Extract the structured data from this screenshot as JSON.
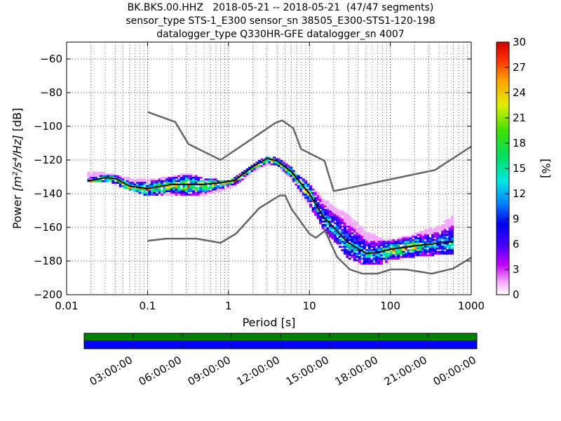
{
  "title_lines": [
    "BK.BKS.00.HHZ   2018-05-21 -- 2018-05-21  (47/47 segments)",
    "sensor_type STS-1_E300 sensor_sn 38505_E300-STS1-120-198",
    "datalogger_type Q330HR-GFE datalogger_sn 4007"
  ],
  "chart_data": {
    "type": "heatmap",
    "xlabel": "Period [s]",
    "ylabel_prefix": "Power ",
    "ylabel_units": "[m²/s⁴/Hz]",
    "ylabel_suffix": " [dB]",
    "x_scale": "log",
    "xlim": [
      0.01,
      1000
    ],
    "ylim": [
      -200,
      -50
    ],
    "x_ticks": [
      0.01,
      0.1,
      1,
      10,
      100,
      1000
    ],
    "x_tick_labels": [
      "0.01",
      "0.1",
      "1",
      "10",
      "100",
      "1000"
    ],
    "y_ticks": [
      -60,
      -80,
      -100,
      -120,
      -140,
      -160,
      -180,
      -200
    ],
    "y_tick_labels": [
      "−60",
      "−80",
      "−100",
      "−120",
      "−140",
      "−160",
      "−180",
      "−200"
    ],
    "grid": "dotted",
    "colorbar": {
      "label": "[%]",
      "range": [
        0,
        30
      ],
      "ticks": [
        0,
        3,
        6,
        9,
        12,
        15,
        18,
        21,
        24,
        27,
        30
      ],
      "colormap": "pqlx"
    },
    "series": [
      {
        "role": "noise-model-high",
        "color": "#666666",
        "points": [
          [
            0.1,
            -91.5
          ],
          [
            0.22,
            -97.4
          ],
          [
            0.32,
            -110.5
          ],
          [
            0.8,
            -120
          ],
          [
            3.8,
            -98
          ],
          [
            4.6,
            -96.5
          ],
          [
            6.3,
            -101
          ],
          [
            7.9,
            -113.5
          ],
          [
            15.4,
            -120.5
          ],
          [
            20,
            -138.5
          ],
          [
            354.8,
            -126
          ],
          [
            1000,
            -112
          ]
        ]
      },
      {
        "role": "noise-model-low",
        "color": "#666666",
        "points": [
          [
            0.1,
            -168
          ],
          [
            0.17,
            -166.7
          ],
          [
            0.4,
            -166.7
          ],
          [
            0.8,
            -169.2
          ],
          [
            1.24,
            -163.7
          ],
          [
            2.4,
            -148.6
          ],
          [
            4.3,
            -141.1
          ],
          [
            5,
            -141.1
          ],
          [
            6,
            -149
          ],
          [
            10,
            -163.8
          ],
          [
            12,
            -166.2
          ],
          [
            15.6,
            -162
          ],
          [
            21.9,
            -177.5
          ],
          [
            31.6,
            -185
          ],
          [
            45,
            -187.5
          ],
          [
            70,
            -187.5
          ],
          [
            101,
            -185
          ],
          [
            154,
            -185
          ],
          [
            328,
            -187.5
          ],
          [
            600,
            -184.4
          ],
          [
            1000,
            -178
          ]
        ]
      },
      {
        "role": "mode",
        "color": "#000000",
        "points": [
          [
            0.018,
            -132.5
          ],
          [
            0.03,
            -130.5
          ],
          [
            0.04,
            -131
          ],
          [
            0.06,
            -135.5
          ],
          [
            0.1,
            -137
          ],
          [
            0.2,
            -134.5
          ],
          [
            0.5,
            -134.5
          ],
          [
            0.8,
            -133.5
          ],
          [
            1.2,
            -132
          ],
          [
            2,
            -124
          ],
          [
            3,
            -119
          ],
          [
            4,
            -120.5
          ],
          [
            6,
            -127
          ],
          [
            10,
            -140
          ],
          [
            15,
            -154
          ],
          [
            20,
            -160
          ],
          [
            30,
            -169
          ],
          [
            50,
            -175.5
          ],
          [
            70,
            -175
          ],
          [
            100,
            -173
          ],
          [
            200,
            -171
          ],
          [
            600,
            -168.5
          ]
        ]
      },
      {
        "role": "pdf-upper-envelope",
        "points": [
          [
            0.03,
            -127
          ],
          [
            0.06,
            -130
          ],
          [
            0.1,
            -131
          ],
          [
            0.2,
            -129
          ],
          [
            0.3,
            -127
          ],
          [
            0.5,
            -130
          ],
          [
            1,
            -132
          ],
          [
            2,
            -122
          ],
          [
            3,
            -117
          ],
          [
            4,
            -118
          ],
          [
            6,
            -124
          ],
          [
            10,
            -134
          ],
          [
            15,
            -142
          ],
          [
            20,
            -147
          ],
          [
            30,
            -152
          ],
          [
            50,
            -162
          ],
          [
            80,
            -166
          ],
          [
            100,
            -167
          ],
          [
            200,
            -163
          ],
          [
            400,
            -158
          ],
          [
            600,
            -152
          ]
        ]
      },
      {
        "role": "pdf-lower-envelope",
        "points": [
          [
            0.03,
            -132
          ],
          [
            0.06,
            -137
          ],
          [
            0.1,
            -141
          ],
          [
            0.2,
            -140
          ],
          [
            0.5,
            -141
          ],
          [
            1,
            -137
          ],
          [
            2,
            -127
          ],
          [
            3,
            -122
          ],
          [
            4,
            -123
          ],
          [
            6,
            -131
          ],
          [
            10,
            -147
          ],
          [
            15,
            -161
          ],
          [
            20,
            -168
          ],
          [
            30,
            -178
          ],
          [
            50,
            -182
          ],
          [
            80,
            -181
          ],
          [
            100,
            -179
          ],
          [
            200,
            -177
          ],
          [
            600,
            -175
          ]
        ]
      }
    ]
  },
  "timebar": {
    "tick_labels": [
      "03:00:00",
      "06:00:00",
      "09:00:00",
      "12:00:00",
      "15:00:00",
      "18:00:00",
      "21:00:00",
      "00:00:00"
    ],
    "data_coverage_color": "#008000",
    "psd_coverage_color": "#0000ff"
  }
}
